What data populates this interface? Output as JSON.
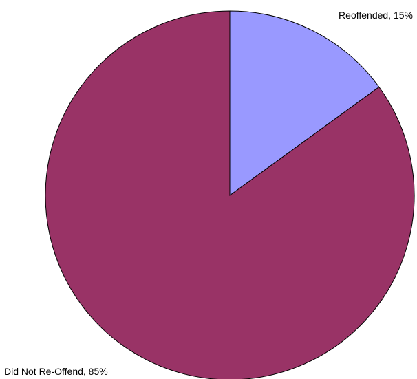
{
  "chart_data": {
    "type": "pie",
    "title": "",
    "slices": [
      {
        "label": "Reoffended, 15%",
        "category": "Reoffended",
        "value": 15,
        "color": "#9999ff"
      },
      {
        "label": "Did Not Re-Offend, 85%",
        "category": "Did Not Re-Offend",
        "value": 85,
        "color": "#993366"
      }
    ],
    "start_angle_deg": 0,
    "direction": "clockwise",
    "legend": "none"
  }
}
